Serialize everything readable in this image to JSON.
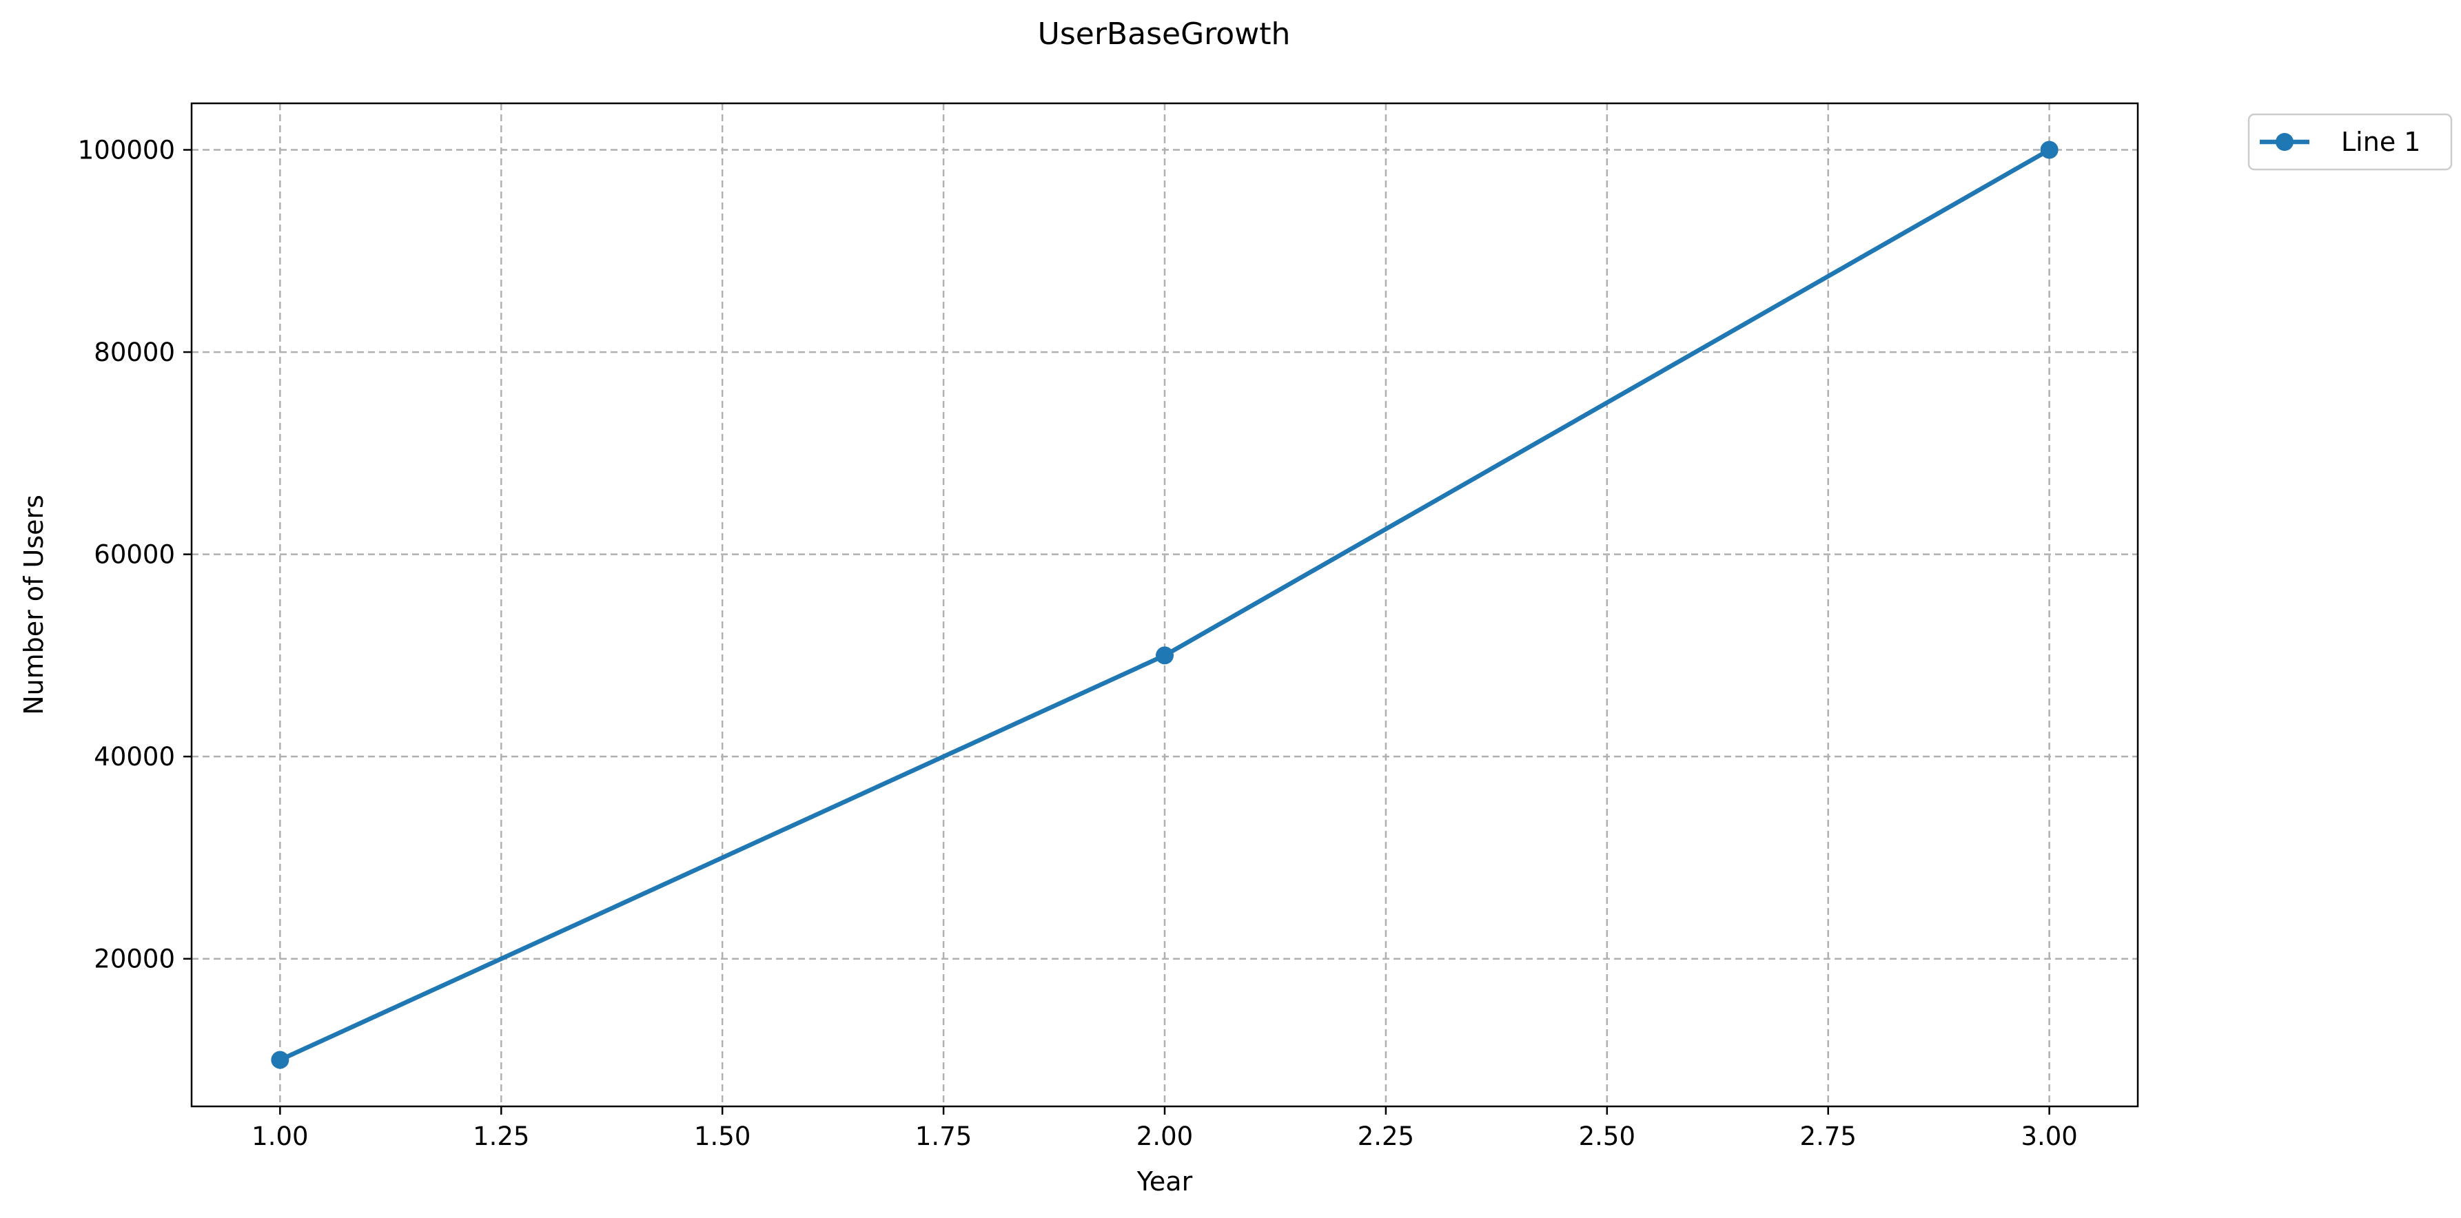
{
  "chart_data": {
    "type": "line",
    "title": "UserBaseGrowth",
    "xlabel": "Year",
    "ylabel": "Number of Users",
    "xlim": [
      0.9,
      3.1
    ],
    "ylim": [
      5400,
      104600
    ],
    "x_ticks": [
      1.0,
      1.25,
      1.5,
      1.75,
      2.0,
      2.25,
      2.5,
      2.75,
      3.0
    ],
    "x_tick_labels": [
      "1.00",
      "1.25",
      "1.50",
      "1.75",
      "2.00",
      "2.25",
      "2.50",
      "2.75",
      "3.00"
    ],
    "y_ticks": [
      20000,
      40000,
      60000,
      80000,
      100000
    ],
    "y_tick_labels": [
      "20000",
      "40000",
      "60000",
      "80000",
      "100000"
    ],
    "grid": true,
    "legend_position": "outside-top-right",
    "series": [
      {
        "name": "Line 1",
        "x": [
          1.0,
          2.0,
          3.0
        ],
        "y": [
          10000,
          50000,
          100000
        ],
        "color": "#1f77b4",
        "marker": "circle"
      }
    ]
  }
}
